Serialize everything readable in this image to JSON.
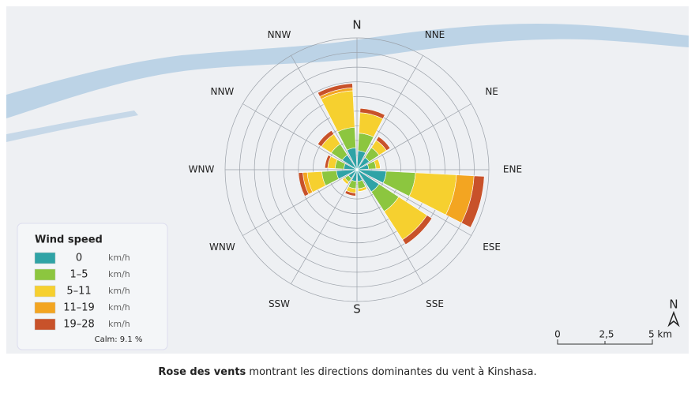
{
  "chart_data": {
    "type": "wind_rose",
    "categories": [
      "N",
      "NNE",
      "NE",
      "ENE",
      "ESE",
      "SSE",
      "S",
      "SSW",
      "WNW",
      "WNW",
      "NNW",
      "NNW"
    ],
    "series": [
      {
        "name": "0",
        "color": "#2fa3a6",
        "values": [
          1.3,
          1.0,
          0.8,
          2.0,
          1.8,
          0.8,
          0.8,
          0.7,
          1.4,
          0.9,
          1.2,
          1.5
        ]
      },
      {
        "name": "1–5",
        "color": "#8cc63f",
        "values": [
          1.2,
          0.8,
          0.5,
          2.0,
          1.6,
          0.5,
          0.5,
          0.3,
          1.0,
          0.6,
          0.9,
          1.4
        ]
      },
      {
        "name": "5–11",
        "color": "#f6d02f",
        "values": [
          1.4,
          0.6,
          0.3,
          2.8,
          2.3,
          0.2,
          0.3,
          0.2,
          1.0,
          0.5,
          0.8,
          2.5
        ]
      },
      {
        "name": "11–19",
        "color": "#f3a521",
        "values": [
          0,
          0,
          0,
          1.2,
          0,
          0,
          0,
          0,
          0.3,
          0,
          0,
          0.2
        ]
      },
      {
        "name": "19–28",
        "color": "#c8522a",
        "values": [
          0.3,
          0.3,
          0,
          0.7,
          0.4,
          0,
          0.2,
          0,
          0.3,
          0.2,
          0.3,
          0.3
        ]
      }
    ],
    "unit": "km/h",
    "rlim": [
      0,
      9
    ],
    "rticks": [
      1,
      2,
      3,
      4,
      5,
      6,
      7,
      8,
      9
    ],
    "legend_title": "Wind speed",
    "calm_label": "Calm: 9.1 %",
    "compass": {
      "north": "N",
      "south": "S"
    },
    "scale_bar": {
      "labels": [
        "0",
        "2,5",
        "5 km"
      ]
    },
    "north_arrow": "N",
    "caption": {
      "bold": "Rose des vents",
      "rest": " montrant les directions dominantes du vent à Kinshasa."
    }
  }
}
